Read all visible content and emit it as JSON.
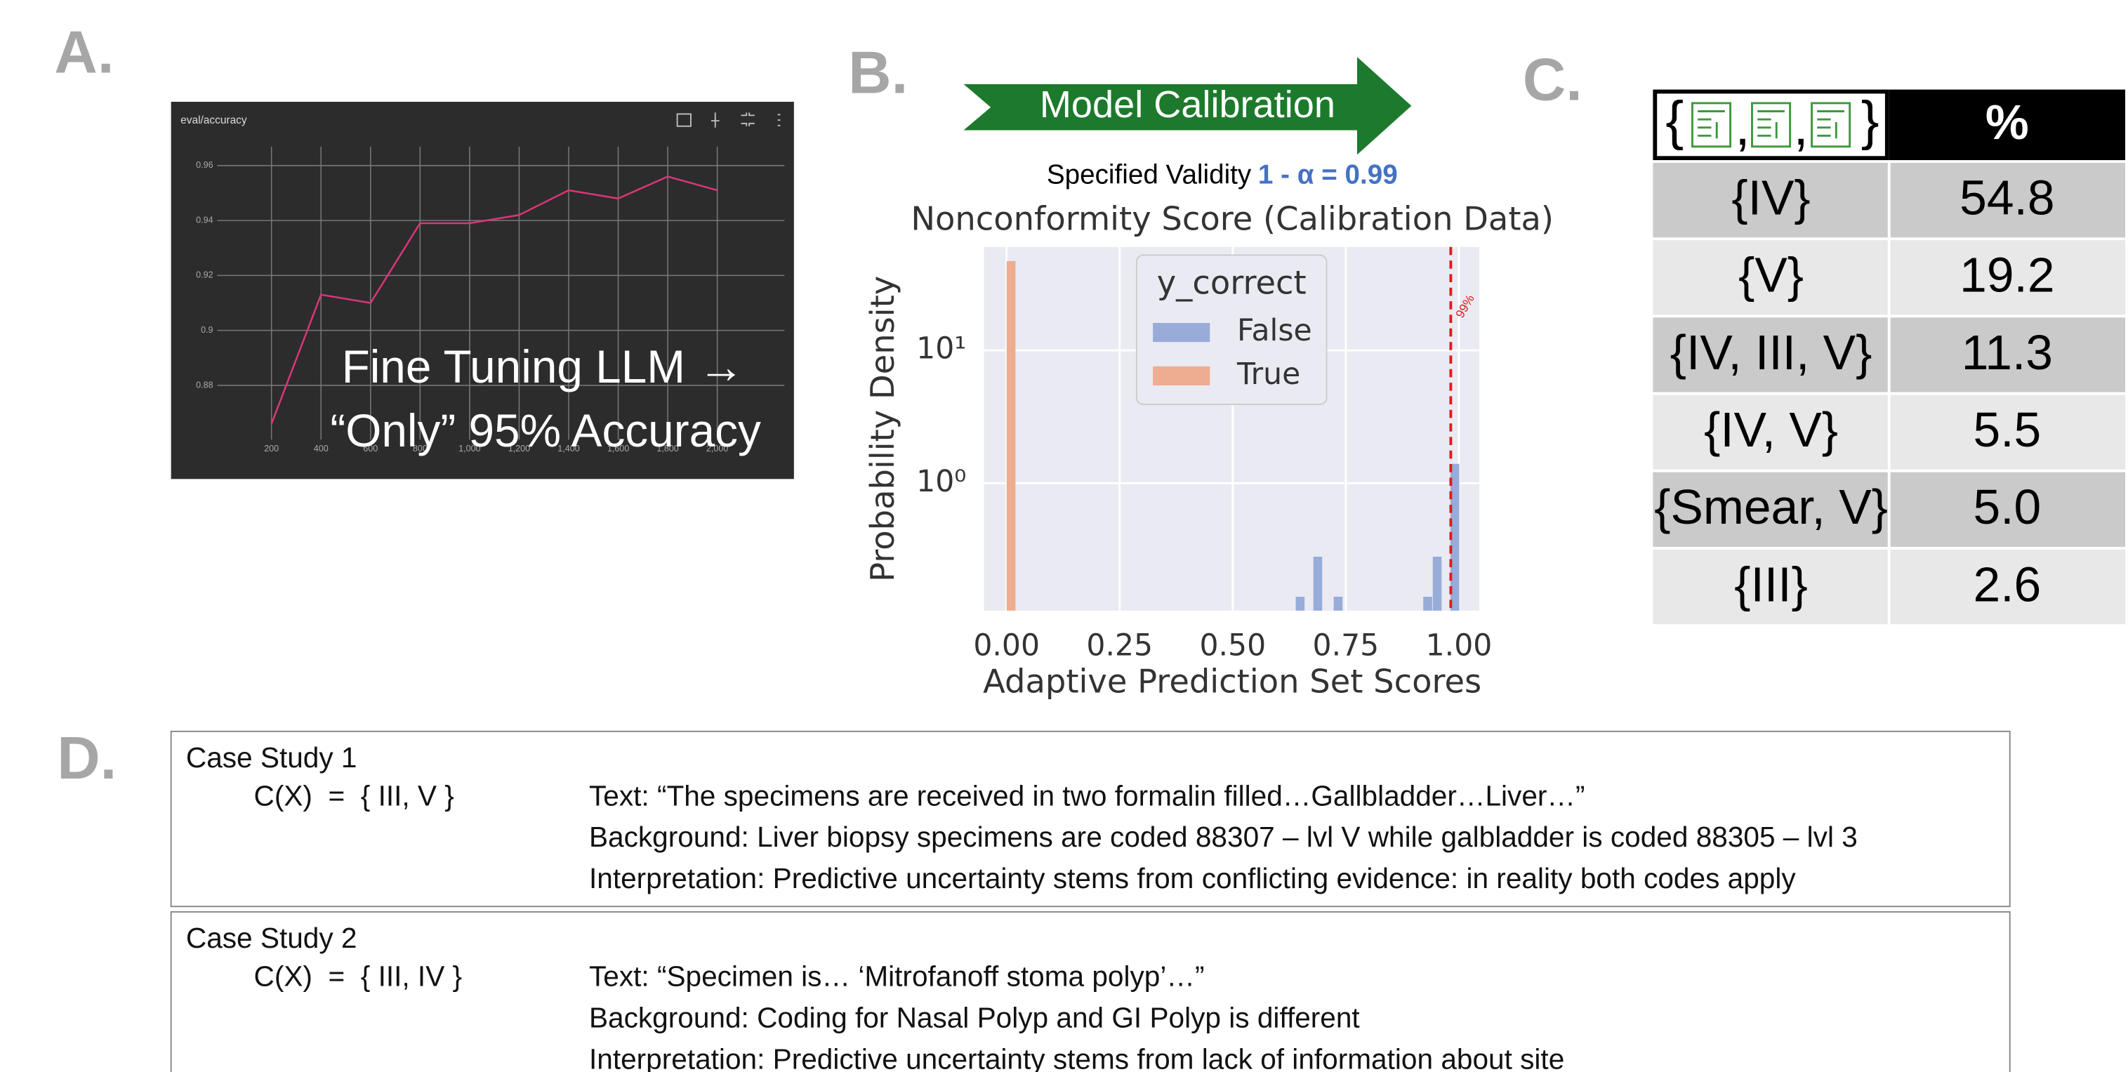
{
  "panel_labels": [
    "A.",
    "B.",
    "C.",
    "D."
  ],
  "chart_data": [
    {
      "type": "line",
      "title": "eval/accuracy",
      "annotations": [
        "Fine Tuning LLM →",
        "“Only” 95% Accuracy"
      ],
      "x": [
        200,
        400,
        600,
        800,
        1000,
        1200,
        1400,
        1600,
        1800,
        2000
      ],
      "values": [
        0.866,
        0.913,
        0.91,
        0.939,
        0.939,
        0.942,
        0.951,
        0.948,
        0.956,
        0.951
      ],
      "color": "#d9367a",
      "xlim": [
        0,
        2200
      ],
      "ylim": [
        0.86,
        0.97
      ],
      "xticks": [
        200,
        400,
        600,
        800,
        {
          "value": 1000,
          "label": "1,000"
        },
        {
          "value": 1200,
          "label": "1,200"
        },
        {
          "value": 1400,
          "label": "1,400"
        },
        {
          "value": 1600,
          "label": "1,600"
        },
        {
          "value": 1800,
          "label": "1,800"
        },
        {
          "value": 2000,
          "label": "2,000"
        }
      ],
      "yticks": [
        0.88,
        0.9,
        0.92,
        0.94,
        0.96
      ],
      "grid": true
    },
    {
      "type": "histogram",
      "banner": "Model Calibration",
      "subtitle": "Specified Validity",
      "validity": "1 - α = 0.99",
      "title": "Nonconformity Score (Calibration Data)",
      "xlabel": "Adaptive Prediction Set Scores",
      "ylabel": "Probability Density",
      "legend_title": "y_correct",
      "legend_position": "upper center",
      "series": [
        {
          "name": "False",
          "color": "#97acd8",
          "x": [
            0.649,
            0.688,
            0.733,
            0.931,
            0.952,
            0.991
          ],
          "values": [
            0.14,
            0.28,
            0.14,
            0.14,
            0.28,
            1.4
          ]
        },
        {
          "name": "True",
          "color": "#eeac90",
          "x": [
            0.01
          ],
          "values": [
            47
          ]
        }
      ],
      "xlim": [
        -0.05,
        1.045
      ],
      "ylim": [
        0.11,
        60
      ],
      "log_y": true,
      "xticks": [
        {
          "value": 0,
          "label": "0.00"
        },
        {
          "value": 0.25,
          "label": "0.25"
        },
        {
          "value": 0.5,
          "label": "0.50"
        },
        {
          "value": 0.75,
          "label": "0.75"
        },
        {
          "value": 1,
          "label": "1.00"
        }
      ],
      "yticks": [
        {
          "value": 1,
          "label": "10⁰"
        },
        {
          "value": 10,
          "label": "10¹"
        }
      ],
      "grid": true,
      "threshold": {
        "value": 0.982,
        "label": "99%"
      }
    }
  ],
  "table": {
    "header": {
      "set_open": "{",
      "separator": ",",
      "set_close": "}",
      "percent": "%"
    },
    "rows": [
      [
        "{IV}",
        "54.8"
      ],
      [
        "{V}",
        "19.2"
      ],
      [
        "{IV, III, V}",
        "11.3"
      ],
      [
        "{IV, V}",
        "5.5"
      ],
      [
        "{Smear, V}",
        "5.0"
      ],
      [
        "{III}",
        "2.6"
      ]
    ]
  },
  "case_studies": [
    {
      "title": "Case Study 1",
      "set": "C(X)  =  { III, V }",
      "lines": [
        "Text: “The specimens are received in two formalin filled…Gallbladder…Liver…”",
        "Background: Liver biopsy specimens are coded 88307 – lvl V while galbladder is coded 88305 – lvl 3",
        "Interpretation: Predictive uncertainty stems from conflicting evidence: in reality both codes apply"
      ]
    },
    {
      "title": "Case Study 2",
      "set": "C(X)  =  { III, IV }",
      "lines": [
        "Text: “Specimen is… ‘Mitrofanoff stoma polyp’…”",
        "Background: Coding for Nasal Polyp and GI Polyp is different",
        "Interpretation: Predictive uncertainty stems from lack of information about site"
      ]
    }
  ]
}
